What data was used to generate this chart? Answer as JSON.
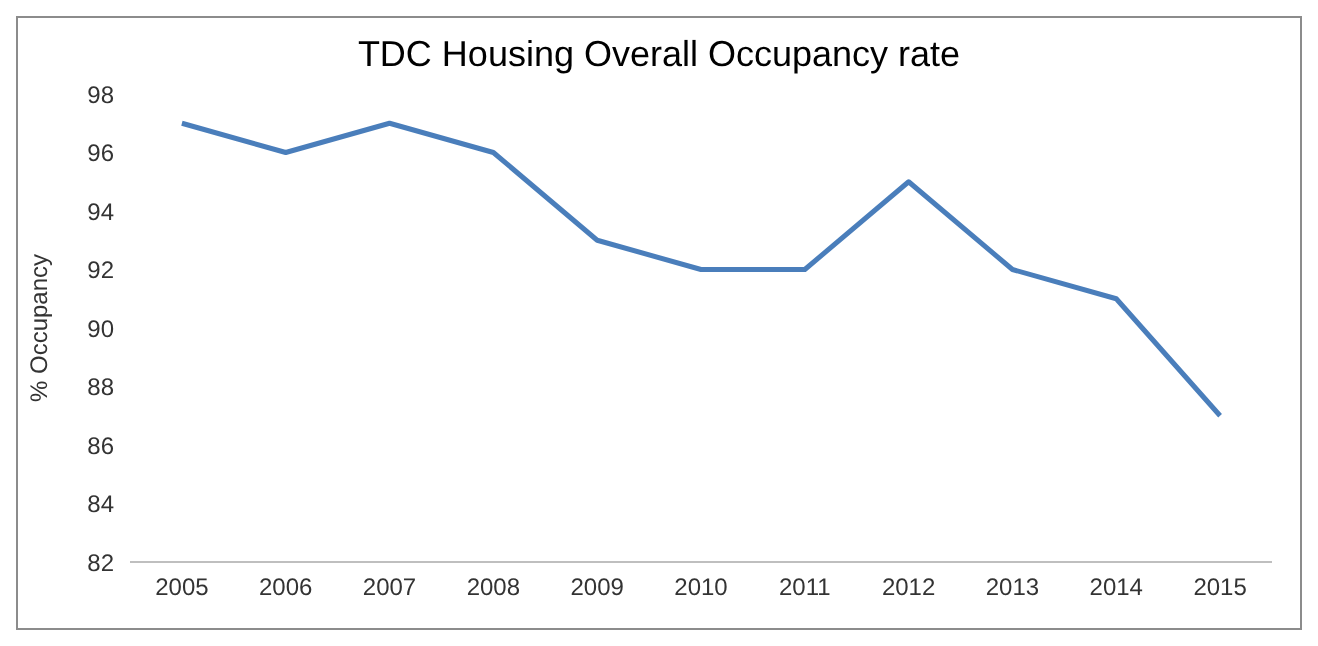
{
  "chart_data": {
    "type": "line",
    "title": "TDC Housing Overall Occupancy rate",
    "ylabel": "% Occupancy",
    "categories": [
      "2005",
      "2006",
      "2007",
      "2008",
      "2009",
      "2010",
      "2011",
      "2012",
      "2013",
      "2014",
      "2015"
    ],
    "series": [
      {
        "color": "#4a7ebb",
        "values": [
          97,
          96,
          97,
          96,
          93,
          92,
          92,
          95,
          92,
          91,
          87
        ]
      }
    ],
    "ylim": [
      82,
      98
    ],
    "yticks": [
      82,
      84,
      86,
      88,
      90,
      92,
      94,
      96,
      98
    ],
    "grid": false,
    "legend": false,
    "marker": "none",
    "line_style": "solid"
  }
}
